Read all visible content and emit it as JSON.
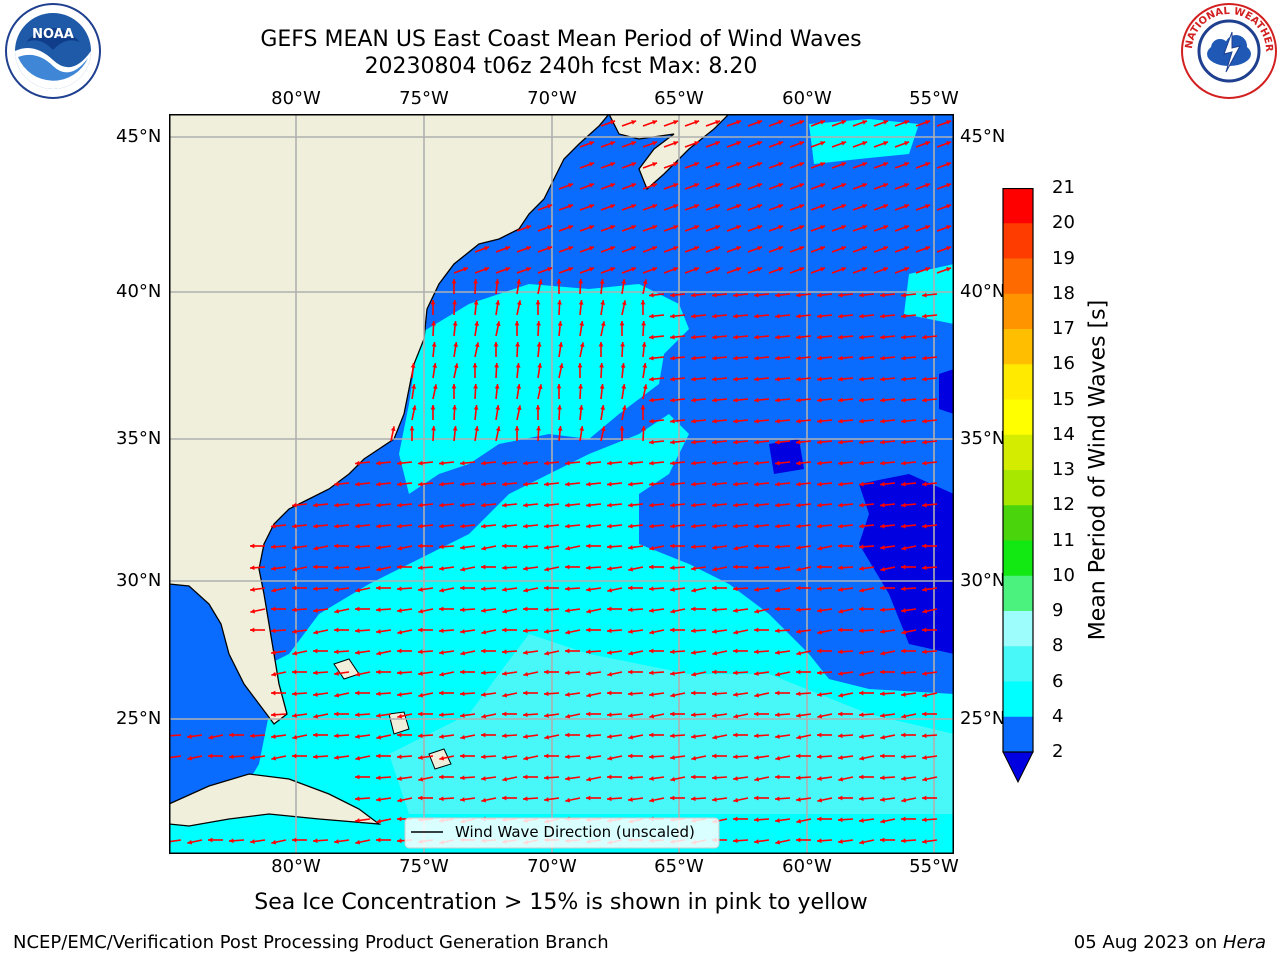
{
  "title": {
    "line1": "GEFS MEAN US East Coast Mean Period of Wind Waves",
    "line2": "20230804 t06z 240h fcst   Max: 8.20"
  },
  "axes": {
    "lon_labels": [
      "80°W",
      "75°W",
      "70°W",
      "65°W",
      "60°W",
      "55°W"
    ],
    "lat_labels": [
      "45°N",
      "40°N",
      "35°N",
      "30°N",
      "25°N"
    ]
  },
  "legend": {
    "label": "Wind Wave Direction (unscaled)"
  },
  "colorbar": {
    "title": "Mean Period of Wind Waves [s]",
    "ticks": [
      "21",
      "20",
      "19",
      "18",
      "17",
      "16",
      "15",
      "14",
      "13",
      "12",
      "11",
      "10",
      "9",
      "8",
      "6",
      "4",
      "2"
    ],
    "colors": {
      "2-4": "#0a6cff",
      "4-6": "#00ffff",
      "6-8": "#48f8f8",
      "8-9": "#9dfcfc",
      "9-10": "#4cf27e",
      "10-11": "#12e812",
      "11-12": "#4ad40c",
      "12-13": "#a8e800",
      "13-14": "#d4ec00",
      "14-15": "#ffff00",
      "15-16": "#ffea00",
      "16-17": "#ffbe00",
      "17-18": "#ff9400",
      "18-19": "#ff6a00",
      "19-20": "#ff3c00",
      "20-21": "#ff0000",
      "under": "#0000e0"
    }
  },
  "map": {
    "land_color": "#efefdb",
    "arrow_color": "#ff0000",
    "grid_color": "#b0b0b0"
  },
  "notes": {
    "sea_ice": "Sea Ice Concentration > 15% is shown in pink to yellow"
  },
  "footer": {
    "left": "NCEP/EMC/Verification Post Processing Product Generation Branch",
    "right_prefix": "05 Aug 2023 on ",
    "right_machine": "Hera"
  },
  "logos": {
    "noaa_text": "NOAA",
    "nws_text": "NATIONAL WEATHER SERVICE"
  }
}
